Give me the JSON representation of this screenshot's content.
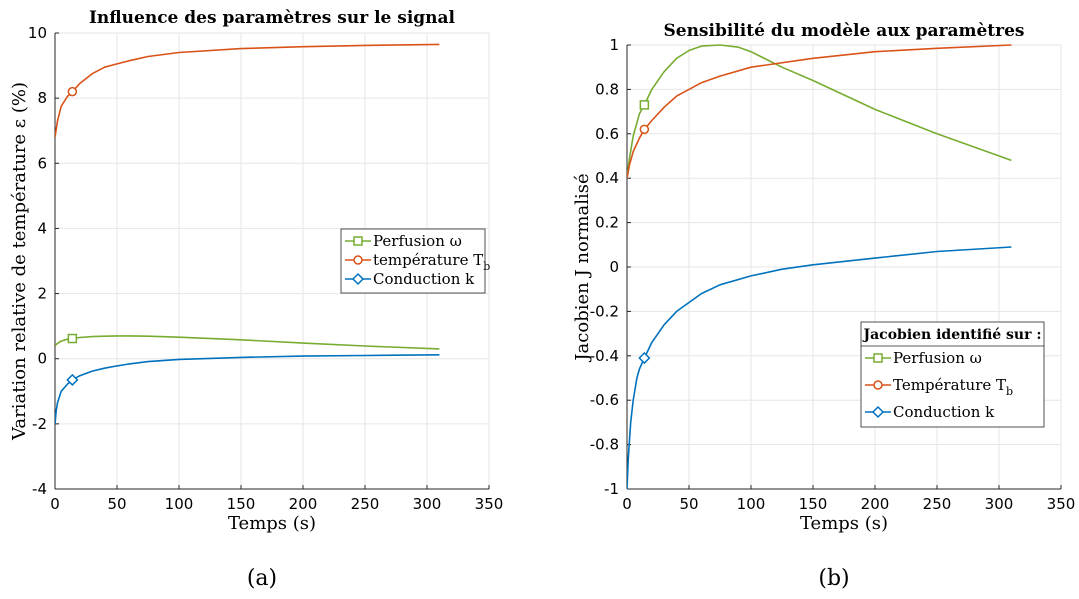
{
  "chart_data": [
    {
      "type": "line",
      "title": "Influence des paramètres sur le signal",
      "xlabel": "Temps (s)",
      "ylabel": "Variation relative de température ε (%)",
      "xlim": [
        0,
        350
      ],
      "ylim": [
        -4,
        10
      ],
      "xticks": [
        0,
        50,
        100,
        150,
        200,
        250,
        300,
        350
      ],
      "yticks": [
        -4,
        -2,
        0,
        2,
        4,
        6,
        8,
        10
      ],
      "grid": true,
      "legend_position": "right-middle",
      "legend_entries": [
        "Perfusion ω",
        "température T",
        "Conduction k"
      ],
      "legend_subscripts": [
        "",
        "b",
        ""
      ],
      "caption": "(a)",
      "series": [
        {
          "name": "Perfusion ω",
          "color": "#77AC30",
          "marker": "square",
          "marker_at": [
            14,
            0.62
          ],
          "x": [
            0,
            2,
            5,
            10,
            14,
            20,
            30,
            40,
            50,
            60,
            75,
            100,
            150,
            200,
            250,
            310
          ],
          "y": [
            0.4,
            0.47,
            0.54,
            0.6,
            0.62,
            0.65,
            0.68,
            0.69,
            0.7,
            0.7,
            0.69,
            0.66,
            0.58,
            0.48,
            0.39,
            0.3
          ]
        },
        {
          "name": "température T",
          "color": "#D95319",
          "marker": "circle",
          "marker_at": [
            14,
            8.2
          ],
          "x": [
            0,
            2,
            5,
            10,
            14,
            20,
            30,
            40,
            50,
            60,
            75,
            100,
            150,
            200,
            250,
            310
          ],
          "y": [
            6.8,
            7.3,
            7.75,
            8.05,
            8.2,
            8.45,
            8.75,
            8.95,
            9.05,
            9.15,
            9.28,
            9.4,
            9.52,
            9.58,
            9.62,
            9.65
          ]
        },
        {
          "name": "Conduction k",
          "color": "#0072BD",
          "marker": "diamond",
          "marker_at": [
            14,
            -0.65
          ],
          "x": [
            0,
            1,
            2,
            5,
            10,
            14,
            20,
            30,
            40,
            50,
            60,
            75,
            100,
            150,
            200,
            250,
            310
          ],
          "y": [
            -2.0,
            -1.6,
            -1.35,
            -1.0,
            -0.78,
            -0.65,
            -0.52,
            -0.38,
            -0.29,
            -0.22,
            -0.16,
            -0.09,
            -0.02,
            0.04,
            0.08,
            0.1,
            0.12
          ]
        }
      ]
    },
    {
      "type": "line",
      "title": "Sensibilité du modèle aux paramètres",
      "xlabel": "Temps (s)",
      "ylabel": "Jacobien J normalisé",
      "xlim": [
        0,
        350
      ],
      "ylim": [
        -1,
        1
      ],
      "xticks": [
        0,
        50,
        100,
        150,
        200,
        250,
        300,
        350
      ],
      "yticks": [
        -1,
        -0.8,
        -0.6,
        -0.4,
        -0.2,
        0,
        0.2,
        0.4,
        0.6,
        0.8,
        1
      ],
      "ytick_labels": [
        "-1",
        "-0.8",
        "-0.6",
        "-0.4",
        "-0.2",
        "0",
        "0.2",
        "0.4",
        "0.6",
        "0.8",
        "1"
      ],
      "grid": true,
      "legend_position": "bottom-right",
      "legend_title": "Jacobien identifié sur :",
      "legend_entries": [
        "Perfusion ω",
        "Température T",
        "Conduction k"
      ],
      "legend_subscripts": [
        "",
        "b",
        ""
      ],
      "caption": "(b)",
      "series": [
        {
          "name": "Perfusion ω",
          "color": "#77AC30",
          "marker": "square",
          "marker_at": [
            14,
            0.73
          ],
          "x": [
            0,
            2,
            5,
            10,
            14,
            20,
            30,
            40,
            50,
            60,
            75,
            90,
            100,
            125,
            150,
            200,
            250,
            310
          ],
          "y": [
            0.4,
            0.49,
            0.59,
            0.69,
            0.73,
            0.8,
            0.88,
            0.94,
            0.975,
            0.995,
            1.0,
            0.99,
            0.97,
            0.9,
            0.84,
            0.71,
            0.6,
            0.48
          ]
        },
        {
          "name": "Température T",
          "color": "#D95319",
          "marker": "circle",
          "marker_at": [
            14,
            0.62
          ],
          "x": [
            0,
            2,
            5,
            10,
            14,
            20,
            30,
            40,
            50,
            60,
            75,
            100,
            150,
            200,
            250,
            310
          ],
          "y": [
            0.4,
            0.46,
            0.52,
            0.58,
            0.62,
            0.66,
            0.72,
            0.77,
            0.8,
            0.83,
            0.86,
            0.9,
            0.94,
            0.97,
            0.985,
            1.0
          ]
        },
        {
          "name": "Conduction k",
          "color": "#0072BD",
          "marker": "diamond",
          "marker_at": [
            14,
            -0.41
          ],
          "x": [
            0,
            1,
            2,
            3,
            5,
            8,
            10,
            14,
            20,
            30,
            40,
            50,
            60,
            75,
            100,
            125,
            150,
            200,
            250,
            310
          ],
          "y": [
            -1.0,
            -0.87,
            -0.78,
            -0.7,
            -0.6,
            -0.5,
            -0.46,
            -0.41,
            -0.34,
            -0.26,
            -0.2,
            -0.16,
            -0.12,
            -0.08,
            -0.04,
            -0.01,
            0.01,
            0.04,
            0.07,
            0.09
          ]
        }
      ]
    }
  ]
}
